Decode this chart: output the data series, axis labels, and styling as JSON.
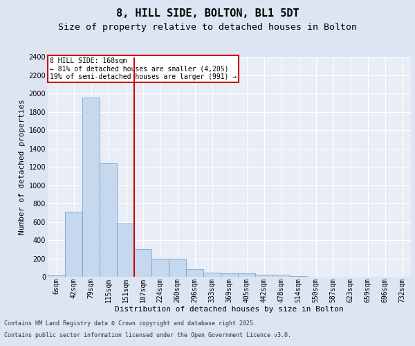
{
  "title1": "8, HILL SIDE, BOLTON, BL1 5DT",
  "title2": "Size of property relative to detached houses in Bolton",
  "xlabel": "Distribution of detached houses by size in Bolton",
  "ylabel": "Number of detached properties",
  "categories": [
    "6sqm",
    "42sqm",
    "79sqm",
    "115sqm",
    "151sqm",
    "187sqm",
    "224sqm",
    "260sqm",
    "296sqm",
    "333sqm",
    "369sqm",
    "405sqm",
    "442sqm",
    "478sqm",
    "514sqm",
    "550sqm",
    "587sqm",
    "623sqm",
    "659sqm",
    "696sqm",
    "732sqm"
  ],
  "values": [
    18,
    710,
    1960,
    1240,
    580,
    305,
    200,
    200,
    85,
    45,
    38,
    35,
    25,
    22,
    8,
    0,
    0,
    0,
    0,
    0,
    0
  ],
  "bar_color": "#c5d8ee",
  "bar_edge_color": "#6699cc",
  "vline_x_idx": 4,
  "vline_color": "#cc0000",
  "annotation_title": "8 HILL SIDE: 168sqm",
  "annotation_line1": "← 81% of detached houses are smaller (4,205)",
  "annotation_line2": "19% of semi-detached houses are larger (991) →",
  "ylim": [
    0,
    2400
  ],
  "yticks": [
    0,
    200,
    400,
    600,
    800,
    1000,
    1200,
    1400,
    1600,
    1800,
    2000,
    2200,
    2400
  ],
  "bg_color": "#dde5f2",
  "plot_bg_color": "#e8edf6",
  "grid_color": "#ffffff",
  "footer1": "Contains HM Land Registry data © Crown copyright and database right 2025.",
  "footer2": "Contains public sector information licensed under the Open Government Licence v3.0.",
  "title1_fontsize": 11,
  "title2_fontsize": 9.5,
  "tick_fontsize": 7,
  "ylabel_fontsize": 8,
  "xlabel_fontsize": 8,
  "footer_fontsize": 6,
  "annot_fontsize": 7
}
